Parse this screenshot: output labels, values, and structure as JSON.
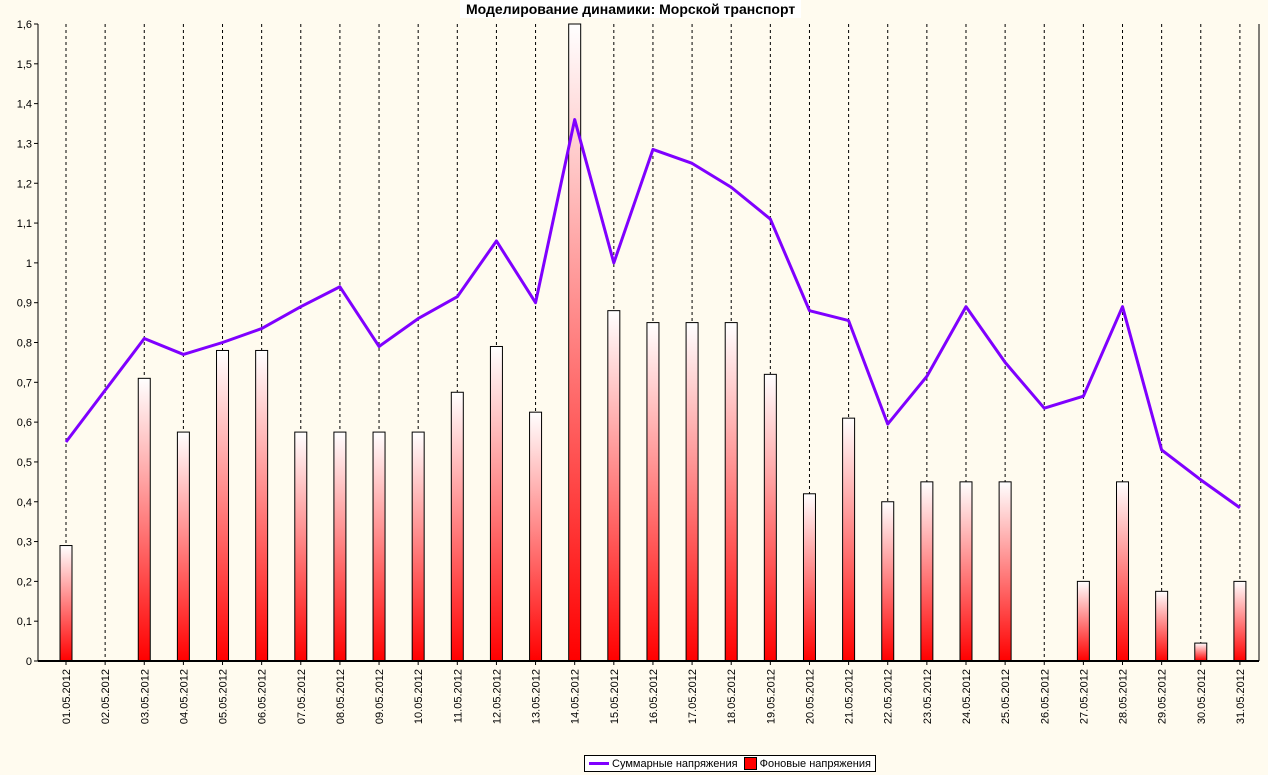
{
  "chart_data": {
    "type": "bar",
    "title": "Моделирование динамики: Морской транспорт",
    "categories": [
      "01.05.2012",
      "02.05.2012",
      "03.05.2012",
      "04.05.2012",
      "05.05.2012",
      "06.05.2012",
      "07.05.2012",
      "08.05.2012",
      "09.05.2012",
      "10.05.2012",
      "11.05.2012",
      "12.05.2012",
      "13.05.2012",
      "14.05.2012",
      "15.05.2012",
      "16.05.2012",
      "17.05.2012",
      "18.05.2012",
      "19.05.2012",
      "20.05.2012",
      "21.05.2012",
      "22.05.2012",
      "23.05.2012",
      "24.05.2012",
      "25.05.2012",
      "26.05.2012",
      "27.05.2012",
      "28.05.2012",
      "29.05.2012",
      "30.05.2012",
      "31.05.2012"
    ],
    "series": [
      {
        "name": "Суммарные напряжения",
        "type": "line",
        "color": "#7f00ff",
        "values": [
          0.55,
          0.68,
          0.81,
          0.77,
          0.8,
          0.835,
          0.89,
          0.94,
          0.79,
          0.86,
          0.915,
          1.055,
          0.9,
          1.36,
          1.0,
          1.285,
          1.25,
          1.19,
          1.11,
          0.88,
          0.855,
          0.595,
          0.715,
          0.89,
          0.75,
          0.635,
          0.665,
          0.89,
          0.53,
          0.455,
          0.385
        ]
      },
      {
        "name": "Фоновые напряжения",
        "type": "bar",
        "color": "#ff0000",
        "values": [
          0.29,
          0,
          0.71,
          0.575,
          0.78,
          0.78,
          0.575,
          0.575,
          0.575,
          0.575,
          0.675,
          0.79,
          0.625,
          1.6,
          0.88,
          0.85,
          0.85,
          0.85,
          0.72,
          0.42,
          0.61,
          0.4,
          0.45,
          0.45,
          0.45,
          0,
          0.2,
          0.45,
          0.175,
          0.045,
          0.2
        ]
      }
    ],
    "y_ticks": [
      "0",
      "0,1",
      "0,2",
      "0,3",
      "0,4",
      "0,5",
      "0,6",
      "0,7",
      "0,8",
      "0,9",
      "1",
      "1,1",
      "1,2",
      "1,3",
      "1,4",
      "1,5",
      "1,6"
    ],
    "ylim": [
      0,
      1.6
    ],
    "xlabel": "",
    "ylabel": "",
    "grid": "vertical dashed",
    "legend": "bottom-center"
  }
}
